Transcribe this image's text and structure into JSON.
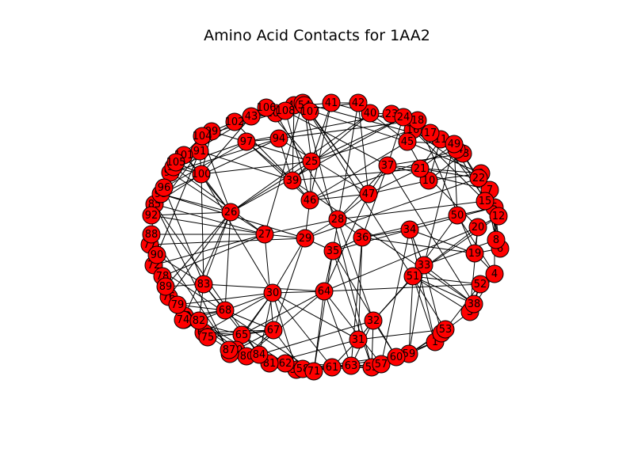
{
  "title": "Amino Acid Contacts for 1AA2",
  "colors": {
    "node_fill": "#ff0000",
    "node_stroke": "#000000",
    "edge": "#000000",
    "background": "#ffffff"
  },
  "nodes": [
    "1",
    "2",
    "3",
    "4",
    "5",
    "6",
    "7",
    "8",
    "9",
    "10",
    "11",
    "12",
    "13",
    "14",
    "15",
    "16",
    "17",
    "18",
    "19",
    "20",
    "21",
    "22",
    "23",
    "24",
    "25",
    "26",
    "27",
    "28",
    "29",
    "30",
    "31",
    "32",
    "33",
    "34",
    "35",
    "36",
    "37",
    "38",
    "39",
    "40",
    "41",
    "42",
    "43",
    "44",
    "45",
    "46",
    "47",
    "48",
    "49",
    "50",
    "51",
    "52",
    "53",
    "54",
    "55",
    "56",
    "57",
    "58",
    "59",
    "60",
    "61",
    "62",
    "63",
    "64",
    "65",
    "66",
    "67",
    "68",
    "69",
    "70",
    "71",
    "72",
    "73",
    "74",
    "75",
    "76",
    "77",
    "78",
    "79",
    "80",
    "81",
    "82",
    "83",
    "84",
    "85",
    "86",
    "87",
    "88",
    "89",
    "90",
    "91",
    "92",
    "93",
    "94",
    "95",
    "96",
    "97",
    "98",
    "99",
    "100",
    "101",
    "102",
    "103",
    "104",
    "105",
    "106",
    "107",
    "108"
  ]
}
